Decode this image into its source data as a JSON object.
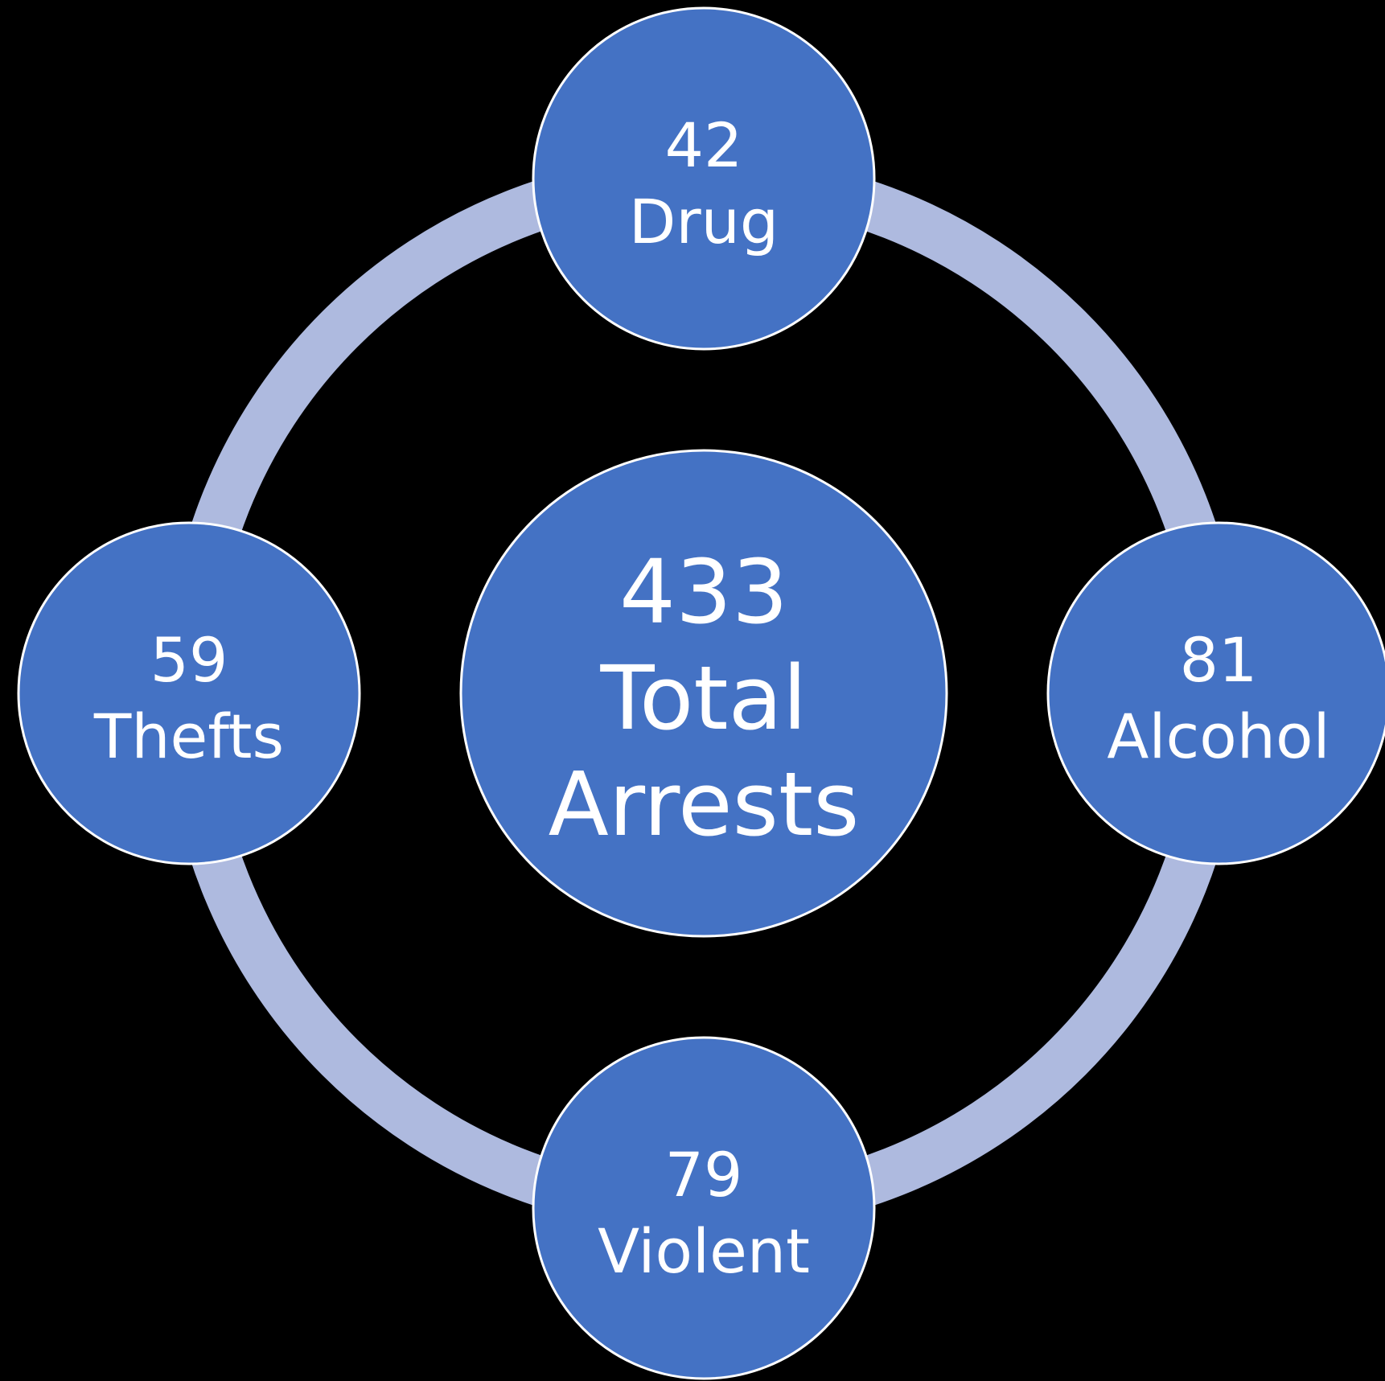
{
  "center": {
    "number": "433",
    "lines": [
      "Total",
      "Arrests"
    ]
  },
  "nodes": [
    {
      "number": "42",
      "label": "Drug"
    },
    {
      "number": "81",
      "label": "Alcohol"
    },
    {
      "number": "79",
      "label": "Violent"
    },
    {
      "number": "59",
      "label": "Thefts"
    }
  ]
}
